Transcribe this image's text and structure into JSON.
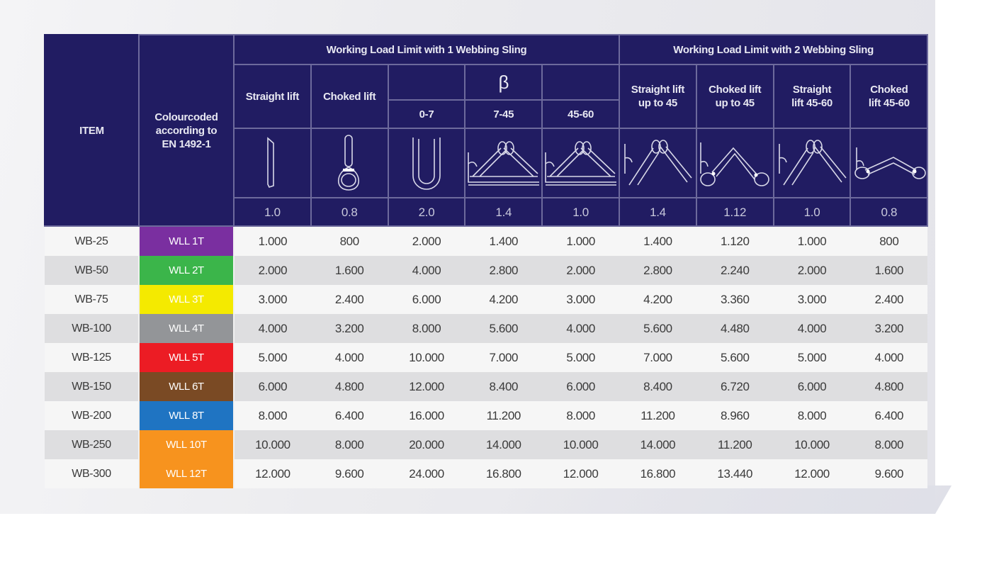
{
  "header": {
    "item": "ITEM",
    "colour": "Colourcoded according to EN 1492-1",
    "group1": "Working Load Limit with 1 Webbing Sling",
    "group2": "Working Load Limit with 2 Webbing Sling",
    "beta": "β",
    "columns": [
      {
        "label": "Straight lift",
        "sub": "",
        "icon": "straight-lift-icon",
        "factor": "1.0"
      },
      {
        "label": "Choked lift",
        "sub": "",
        "icon": "choked-lift-icon",
        "factor": "0.8"
      },
      {
        "label": "",
        "sub": "0-7",
        "icon": "basket-lift-icon",
        "factor": "2.0"
      },
      {
        "label": "β",
        "sub": "7-45",
        "icon": "basket-angle-icon",
        "factor": "1.4"
      },
      {
        "label": "",
        "sub": "45-60",
        "icon": "basket-angle-icon",
        "factor": "1.0"
      },
      {
        "label": "Straight lift up to 45",
        "sub": "",
        "icon": "two-leg-straight-icon",
        "factor": "1.4"
      },
      {
        "label": "Choked lift up to 45",
        "sub": "",
        "icon": "two-leg-choked-icon",
        "factor": "1.12"
      },
      {
        "label": "Straight lift 45-60",
        "sub": "",
        "icon": "two-leg-straight-icon",
        "factor": "1.0"
      },
      {
        "label": "Choked lift 45-60",
        "sub": "",
        "icon": "two-leg-choked-flat-icon",
        "factor": "0.8"
      }
    ]
  },
  "rows": [
    {
      "item": "WB-25",
      "colour": "WLL 1T",
      "color_hex": "#7a2fa0",
      "values": [
        "1.000",
        "800",
        "2.000",
        "1.400",
        "1.000",
        "1.400",
        "1.120",
        "1.000",
        "800"
      ]
    },
    {
      "item": "WB-50",
      "colour": "WLL 2T",
      "color_hex": "#3bb54a",
      "values": [
        "2.000",
        "1.600",
        "4.000",
        "2.800",
        "2.000",
        "2.800",
        "2.240",
        "2.000",
        "1.600"
      ]
    },
    {
      "item": "WB-75",
      "colour": "WLL 3T",
      "color_hex": "#f4ea00",
      "values": [
        "3.000",
        "2.400",
        "6.000",
        "4.200",
        "3.000",
        "4.200",
        "3.360",
        "3.000",
        "2.400"
      ]
    },
    {
      "item": "WB-100",
      "colour": "WLL 4T",
      "color_hex": "#939598",
      "values": [
        "4.000",
        "3.200",
        "8.000",
        "5.600",
        "4.000",
        "5.600",
        "4.480",
        "4.000",
        "3.200"
      ]
    },
    {
      "item": "WB-125",
      "colour": "WLL 5T",
      "color_hex": "#ec1c24",
      "values": [
        "5.000",
        "4.000",
        "10.000",
        "7.000",
        "5.000",
        "7.000",
        "5.600",
        "5.000",
        "4.000"
      ]
    },
    {
      "item": "WB-150",
      "colour": "WLL 6T",
      "color_hex": "#7a4a24",
      "values": [
        "6.000",
        "4.800",
        "12.000",
        "8.400",
        "6.000",
        "8.400",
        "6.720",
        "6.000",
        "4.800"
      ]
    },
    {
      "item": "WB-200",
      "colour": "WLL 8T",
      "color_hex": "#1f74c2",
      "values": [
        "8.000",
        "6.400",
        "16.000",
        "11.200",
        "8.000",
        "11.200",
        "8.960",
        "8.000",
        "6.400"
      ]
    },
    {
      "item": "WB-250",
      "colour": "WLL 10T",
      "color_hex": "#f7931e",
      "values": [
        "10.000",
        "8.000",
        "20.000",
        "14.000",
        "10.000",
        "14.000",
        "11.200",
        "10.000",
        "8.000"
      ]
    },
    {
      "item": "WB-300",
      "colour": "WLL 12T",
      "color_hex": "#f7931e",
      "values": [
        "12.000",
        "9.600",
        "24.000",
        "16.800",
        "12.000",
        "16.800",
        "13.440",
        "12.000",
        "9.600"
      ]
    }
  ]
}
